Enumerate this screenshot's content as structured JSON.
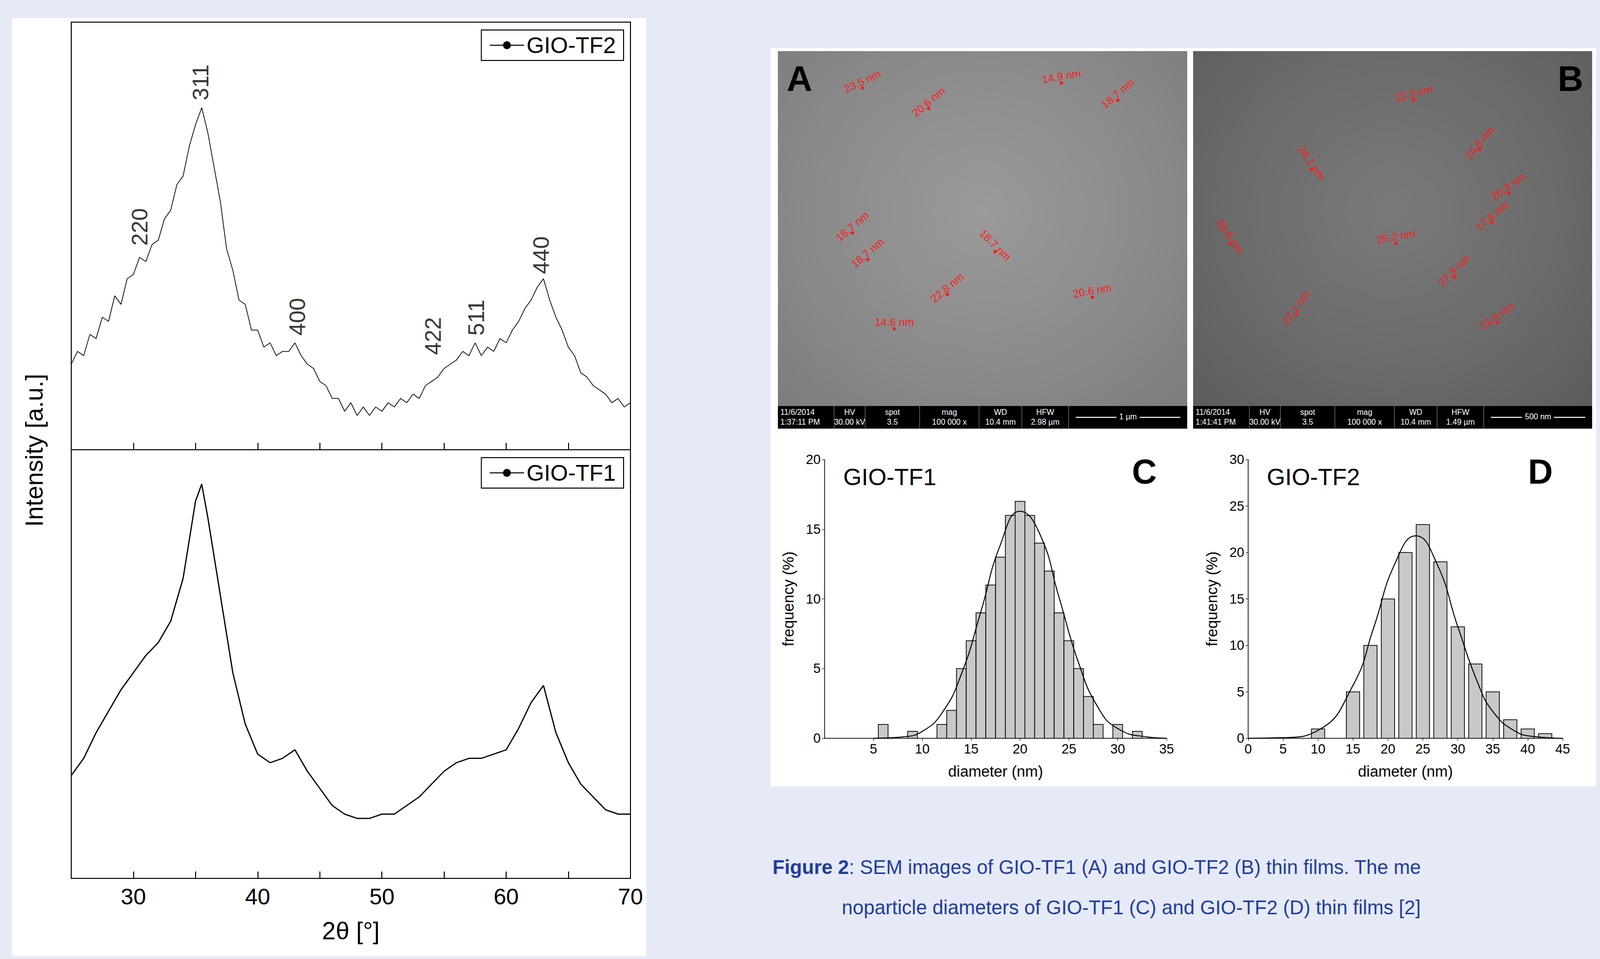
{
  "chart_data": [
    {
      "type": "line",
      "panel_position": "top",
      "ylabel": "Intensity [a.u.]",
      "x": [
        25,
        25.5,
        26,
        26.5,
        27,
        27.5,
        28,
        28.5,
        29,
        29.5,
        30,
        30.5,
        31,
        31.5,
        32,
        32.5,
        33,
        33.5,
        34,
        34.5,
        35,
        35.5,
        36,
        36.5,
        37,
        37.5,
        38,
        38.5,
        39,
        39.5,
        40,
        40.5,
        41,
        41.5,
        42,
        42.5,
        43,
        43.5,
        44,
        44.5,
        45,
        45.5,
        46,
        46.5,
        47,
        47.5,
        48,
        48.5,
        49,
        49.5,
        50,
        50.5,
        51,
        51.5,
        52,
        52.5,
        53,
        53.5,
        54,
        54.5,
        55,
        55.5,
        56,
        56.5,
        57,
        57.5,
        58,
        58.5,
        59,
        59.5,
        60,
        60.5,
        61,
        61.5,
        62,
        62.5,
        63,
        63.5,
        64,
        64.5,
        65,
        65.5,
        66,
        66.5,
        67,
        67.5,
        68,
        68.5,
        69,
        69.5,
        70
      ],
      "series": [
        {
          "name": "GIO-TF2",
          "color": "#000000",
          "values": [
            20,
            23,
            22,
            27,
            26,
            31,
            30,
            36,
            34,
            40,
            41,
            45,
            44,
            48,
            49,
            54,
            56,
            62,
            64,
            71,
            76,
            80,
            74,
            66,
            58,
            47,
            42,
            35,
            34,
            28,
            28,
            24,
            25,
            22,
            23,
            23,
            25,
            22,
            20,
            19,
            16,
            15,
            12,
            12,
            9,
            11,
            8,
            10,
            8,
            10,
            9,
            11,
            10,
            12,
            11,
            13,
            12,
            15,
            16,
            17,
            19,
            20,
            21,
            23,
            22,
            25,
            22,
            24,
            23,
            26,
            25,
            28,
            30,
            33,
            35,
            38,
            40,
            35,
            31,
            28,
            24,
            22,
            18,
            17,
            15,
            14,
            13,
            11,
            12,
            10,
            11
          ]
        }
      ],
      "annotations": [
        {
          "text": "220",
          "x": 30.5,
          "y": 47
        },
        {
          "text": "311",
          "x": 35.4,
          "y": 81
        },
        {
          "text": "400",
          "x": 43.2,
          "y": 26
        },
        {
          "text": "422",
          "x": 54.1,
          "y": 21.5
        },
        {
          "text": "511",
          "x": 57.6,
          "y": 26
        },
        {
          "text": "440",
          "x": 62.8,
          "y": 40.4
        }
      ],
      "xlim": [
        25,
        70
      ],
      "xticks": [
        30,
        40,
        50,
        60,
        70
      ],
      "ylim": [
        0,
        100
      ],
      "tick_labels": false,
      "grid": false,
      "legend": "top-right"
    },
    {
      "type": "line",
      "panel_position": "bottom",
      "xlabel": "2θ [°]",
      "x": [
        25,
        26,
        27,
        28,
        29,
        30,
        31,
        32,
        33,
        34,
        35,
        35.5,
        36,
        37,
        38,
        39,
        40,
        41,
        42,
        43,
        44,
        45,
        46,
        47,
        48,
        49,
        50,
        51,
        52,
        53,
        54,
        55,
        56,
        57,
        58,
        59,
        60,
        61,
        62,
        63,
        64,
        65,
        66,
        67,
        68,
        69,
        70
      ],
      "series": [
        {
          "name": "GIO-TF1",
          "color": "#000000",
          "values": [
            24,
            28,
            34,
            39,
            44,
            48,
            52,
            55,
            60,
            70,
            88,
            92,
            84,
            66,
            48,
            36,
            29,
            27,
            28,
            30,
            25,
            21,
            17,
            15,
            14,
            14,
            15,
            15,
            17,
            19,
            22,
            25,
            27,
            28,
            28,
            29,
            30,
            35,
            41,
            45,
            34,
            27,
            22,
            19,
            16,
            15,
            15
          ]
        }
      ],
      "xlim": [
        25,
        70
      ],
      "xticks": [
        30,
        40,
        50,
        60,
        70
      ],
      "ylim": [
        0,
        100
      ],
      "tick_labels": "x",
      "grid": false,
      "legend": "top-right"
    },
    {
      "type": "histogram",
      "panel": "C",
      "title": "GIO-TF1",
      "xlabel": "diameter (nm)",
      "ylabel": "frequency (%)",
      "bins": [
        5.5,
        6.5,
        7.5,
        8.5,
        9.5,
        10.5,
        11.5,
        12.5,
        13.5,
        14.5,
        15.5,
        16.5,
        17.5,
        18.5,
        19.5,
        20.5,
        21.5,
        22.5,
        23.5,
        24.5,
        25.5,
        26.5,
        27.5,
        28.5,
        29.5,
        30.5,
        31.5,
        32.5
      ],
      "counts": [
        1,
        0,
        0,
        0.5,
        0,
        0,
        1,
        2,
        5,
        7,
        9,
        11,
        13,
        16,
        17,
        16,
        14,
        12,
        9,
        7,
        5,
        3,
        1,
        0,
        1,
        0,
        0.5
      ],
      "fit": {
        "x": [
          5,
          8,
          10,
          12,
          14,
          16,
          18,
          20,
          22,
          24,
          26,
          28,
          30,
          33,
          35
        ],
        "values": [
          0,
          0.1,
          0.5,
          1.8,
          4.6,
          9.1,
          13.9,
          16.3,
          14.7,
          10.1,
          5.4,
          2.2,
          0.7,
          0.1,
          0
        ]
      },
      "color": "#c8c8c8",
      "xlim": [
        0,
        35
      ],
      "xticks": [
        5,
        10,
        15,
        20,
        25,
        30,
        35
      ],
      "ylim": [
        0,
        20
      ],
      "yticks": [
        0,
        5,
        10,
        15,
        20
      ],
      "grid": false
    },
    {
      "type": "histogram",
      "panel": "D",
      "title": "GIO-TF2",
      "xlabel": "diameter (nm)",
      "ylabel": "frequency (%)",
      "bins": [
        8.75,
        11.25,
        13.75,
        16.25,
        18.75,
        21.25,
        23.75,
        26.25,
        28.75,
        31.25,
        33.75,
        36.25,
        38.75,
        41.25,
        43.75
      ],
      "counts": [
        1,
        0,
        5,
        10,
        15,
        20,
        23,
        19,
        12,
        8,
        5,
        2,
        1,
        0.5
      ],
      "fit": {
        "x": [
          0,
          5,
          10,
          15,
          18,
          21,
          24,
          27,
          30,
          33,
          35,
          38,
          41,
          45
        ],
        "values": [
          0,
          0.06,
          0.85,
          5.7,
          12,
          18.8,
          21.8,
          18.8,
          12,
          5.7,
          2.9,
          0.85,
          0.18,
          0
        ]
      },
      "color": "#c8c8c8",
      "xlim": [
        0,
        45
      ],
      "xticks": [
        0,
        5,
        10,
        15,
        20,
        25,
        30,
        35,
        40,
        45
      ],
      "ylim": [
        0,
        30
      ],
      "yticks": [
        0,
        5,
        10,
        15,
        20,
        25,
        30
      ],
      "grid": false
    }
  ],
  "sem_info_headers": [
    "HV",
    "spot",
    "mag",
    "WD",
    "HFW"
  ],
  "sem_images": [
    {
      "letter": "A",
      "date": "11/6/2014",
      "time": "1:37:11 PM",
      "info_values": [
        "30.00 kV",
        "3.5",
        "100 000 x",
        "10.4 mm",
        "2.98 µm"
      ],
      "scale_bar": "1 µm",
      "measurements": [
        "23.5 nm",
        "20.6 nm",
        "14.9 nm",
        "18.7 nm",
        "18.7 nm",
        "18.7 nm",
        "18.7 nm",
        "22.8 nm",
        "20.6 nm",
        "14.6 nm"
      ]
    },
    {
      "letter": "B",
      "date": "11/6/2014",
      "time": "1:41:41 PM",
      "info_values": [
        "30.00 kV",
        "3.5",
        "100 000 x",
        "10.4 mm",
        "1.49 µm"
      ],
      "scale_bar": "500 nm",
      "measurements": [
        "22.3 nm",
        "24.8 nm",
        "24.1 nm",
        "20.3 nm",
        "17.8 nm",
        "26.6 nm",
        "25.2 nm",
        "27.8 nm",
        "27.1 nm",
        "23.9 nm"
      ]
    }
  ],
  "caption": {
    "label": "Figure 2",
    "lines": [
      ": SEM images of GIO-TF1 (A) and GIO-TF2 (B) thin films. The me",
      "noparticle diameters of GIO-TF1 (C) and GIO-TF2 (D) thin films [2]"
    ]
  }
}
